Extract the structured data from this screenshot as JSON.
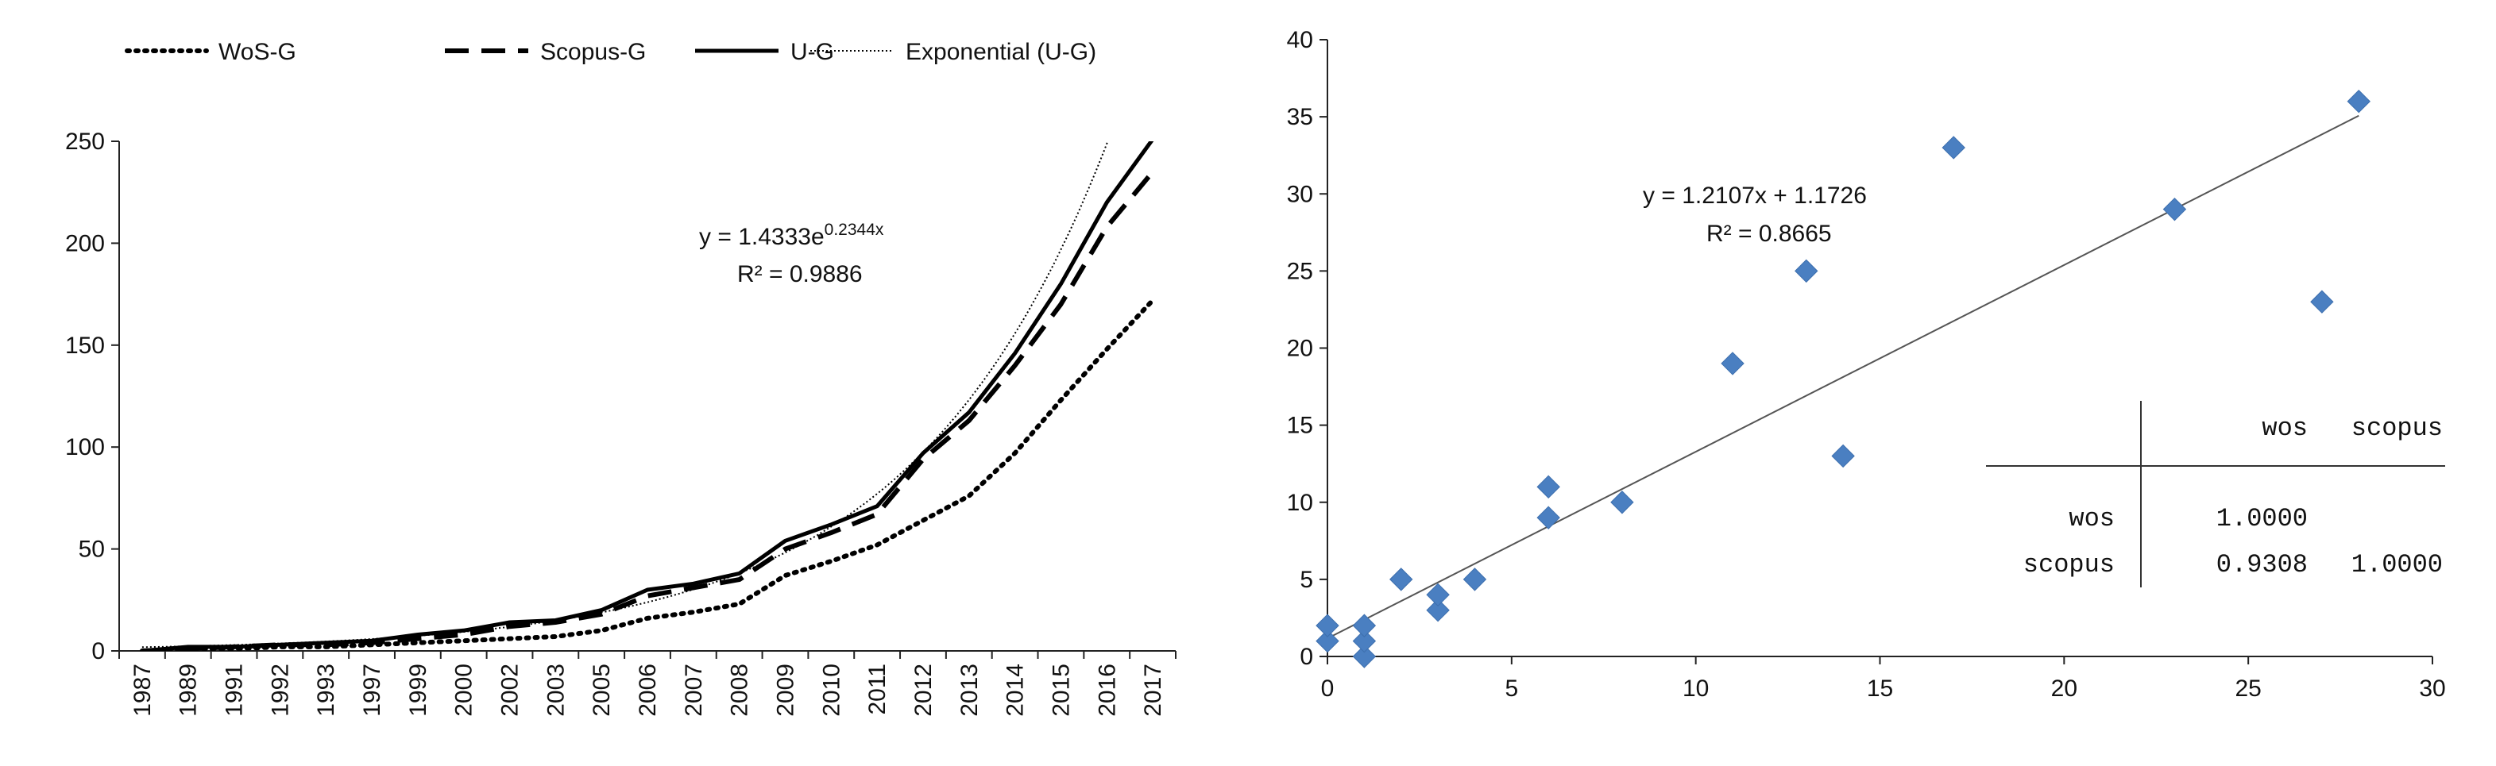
{
  "chart_data": [
    {
      "type": "line",
      "title": "",
      "xlabel": "",
      "ylabel": "",
      "ylim": [
        0,
        250
      ],
      "yticks": [
        0,
        50,
        100,
        150,
        200,
        250
      ],
      "categories": [
        "1987",
        "1989",
        "1991",
        "1992",
        "1993",
        "1997",
        "1999",
        "2000",
        "2002",
        "2003",
        "2005",
        "2006",
        "2007",
        "2008",
        "2009",
        "2010",
        "2011",
        "2012",
        "2013",
        "2014",
        "2015",
        "2016",
        "2017"
      ],
      "series": [
        {
          "name": "WoS-G",
          "style": "dotted",
          "values": [
            0,
            1,
            1,
            2,
            2,
            3,
            4,
            5,
            6,
            7,
            10,
            16,
            19,
            23,
            37,
            44,
            52,
            64,
            76,
            97,
            123,
            148,
            172
          ]
        },
        {
          "name": "Scopus-G",
          "style": "dashed",
          "values": [
            0,
            1,
            2,
            3,
            3,
            4,
            6,
            8,
            12,
            14,
            18,
            27,
            31,
            35,
            50,
            58,
            67,
            94,
            113,
            140,
            170,
            208,
            235
          ]
        },
        {
          "name": "U-G",
          "style": "solid",
          "values": [
            0,
            2,
            2,
            3,
            4,
            5,
            8,
            10,
            14,
            15,
            20,
            30,
            33,
            38,
            54,
            62,
            71,
            97,
            117,
            146,
            180,
            220,
            251
          ]
        },
        {
          "name": "Exponential (U-G)",
          "style": "thin-dotted",
          "fit": {
            "a": 1.4333,
            "b": 0.2344
          }
        }
      ],
      "legend": [
        "WoS-G",
        "Scopus-G",
        "U-G",
        "Exponential (U-G)"
      ],
      "legend_position": "top",
      "annotation": {
        "equation_prefix": "y = 1.4333e",
        "equation_exponent": "0.2344x",
        "r2": "R² = 0.9886"
      }
    },
    {
      "type": "scatter",
      "title": "",
      "xlabel": "",
      "ylabel": "",
      "xlim": [
        0,
        30
      ],
      "ylim": [
        0,
        40
      ],
      "xticks": [
        0,
        5,
        10,
        15,
        20,
        25,
        30
      ],
      "yticks": [
        0,
        5,
        10,
        15,
        20,
        25,
        30,
        35,
        40
      ],
      "marker_color": "#4a7fc1",
      "points": [
        [
          0,
          1
        ],
        [
          0,
          2
        ],
        [
          1,
          0
        ],
        [
          1,
          1
        ],
        [
          1,
          2
        ],
        [
          2,
          5
        ],
        [
          3,
          3
        ],
        [
          3,
          4
        ],
        [
          4,
          5
        ],
        [
          6,
          9
        ],
        [
          6,
          11
        ],
        [
          8,
          10
        ],
        [
          11,
          19
        ],
        [
          13,
          25
        ],
        [
          14,
          13
        ],
        [
          17,
          33
        ],
        [
          23,
          29
        ],
        [
          27,
          23
        ],
        [
          28,
          36
        ]
      ],
      "trendline": {
        "slope": 1.2107,
        "intercept": 1.1726,
        "x_range": [
          0,
          28
        ]
      },
      "annotation": {
        "equation": "y = 1.2107x + 1.1726",
        "r2": "R² = 0.8665"
      },
      "correlation_table": {
        "columns": [
          "wos",
          "scopus"
        ],
        "rows": [
          {
            "label": "wos",
            "values": [
              "1.0000",
              ""
            ]
          },
          {
            "label": "scopus",
            "values": [
              "0.9308",
              "1.0000"
            ]
          }
        ]
      }
    }
  ]
}
